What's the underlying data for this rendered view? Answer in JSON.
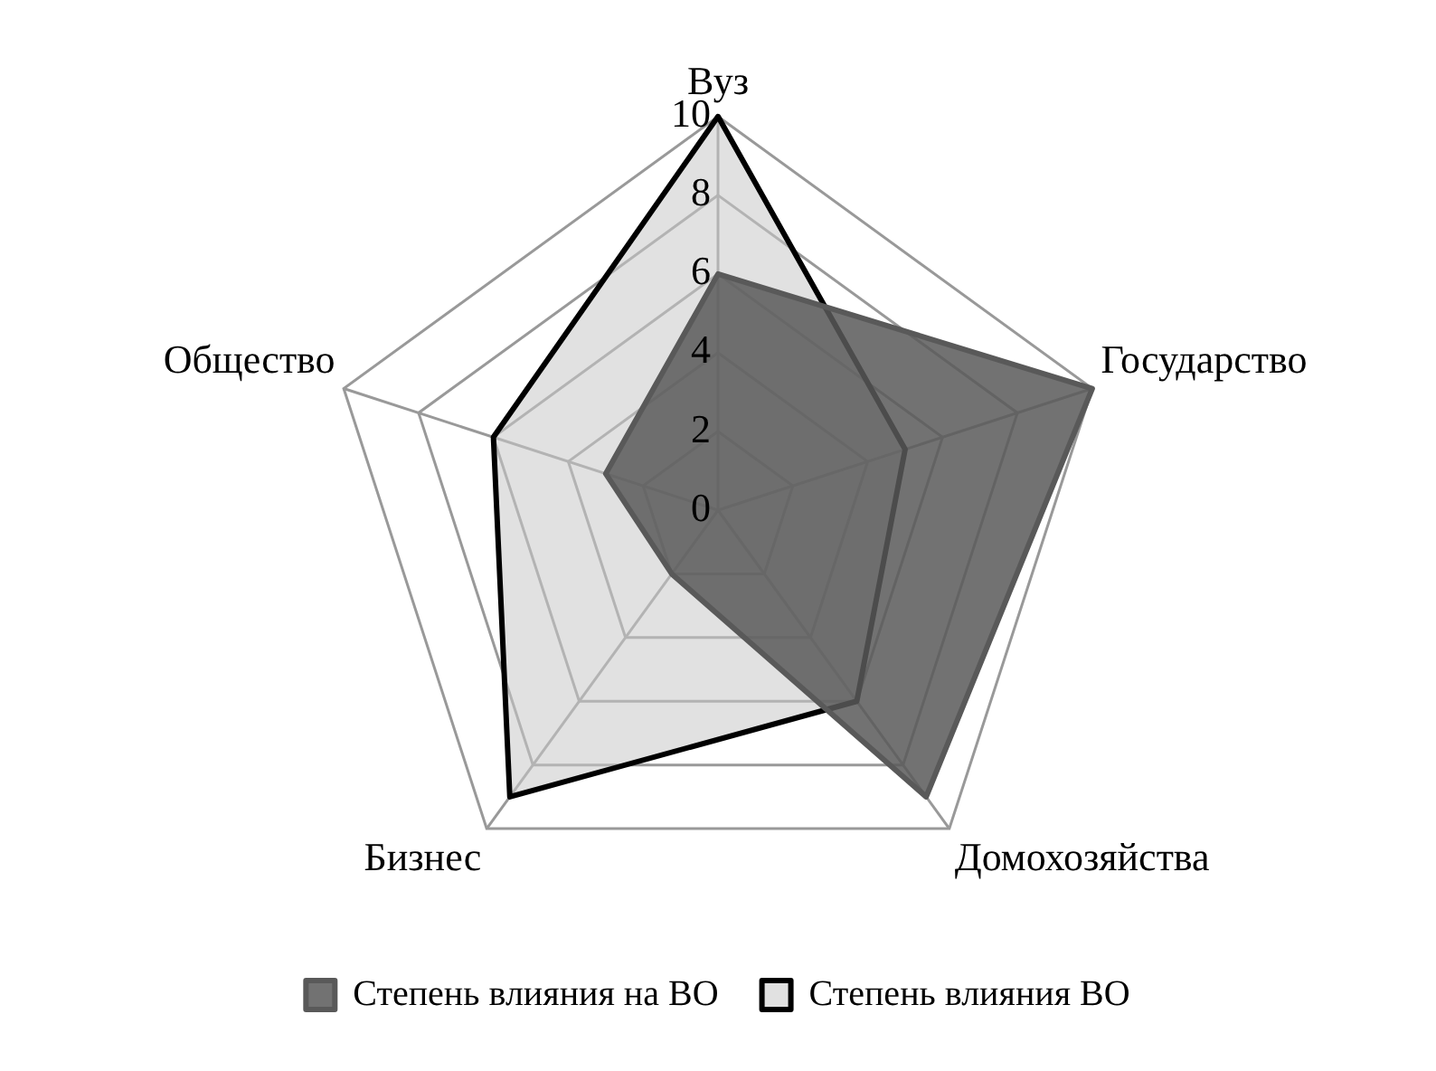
{
  "chart_data": {
    "type": "radar",
    "categories": [
      "Вуз",
      "Государство",
      "Домохозяйства",
      "Бизнес",
      "Общество"
    ],
    "series": [
      {
        "name": "Степень влияния на ВО",
        "color": "#595959",
        "values": [
          6,
          10,
          9,
          2,
          3
        ]
      },
      {
        "name": "Степень влияния ВО",
        "color": "#000000",
        "values": [
          10,
          5,
          6,
          9,
          6
        ]
      }
    ],
    "ylim": [
      0,
      10
    ],
    "yticks": [
      0,
      2,
      4,
      6,
      8,
      10
    ],
    "grid": true,
    "legend": "bottom",
    "marker": "none"
  }
}
